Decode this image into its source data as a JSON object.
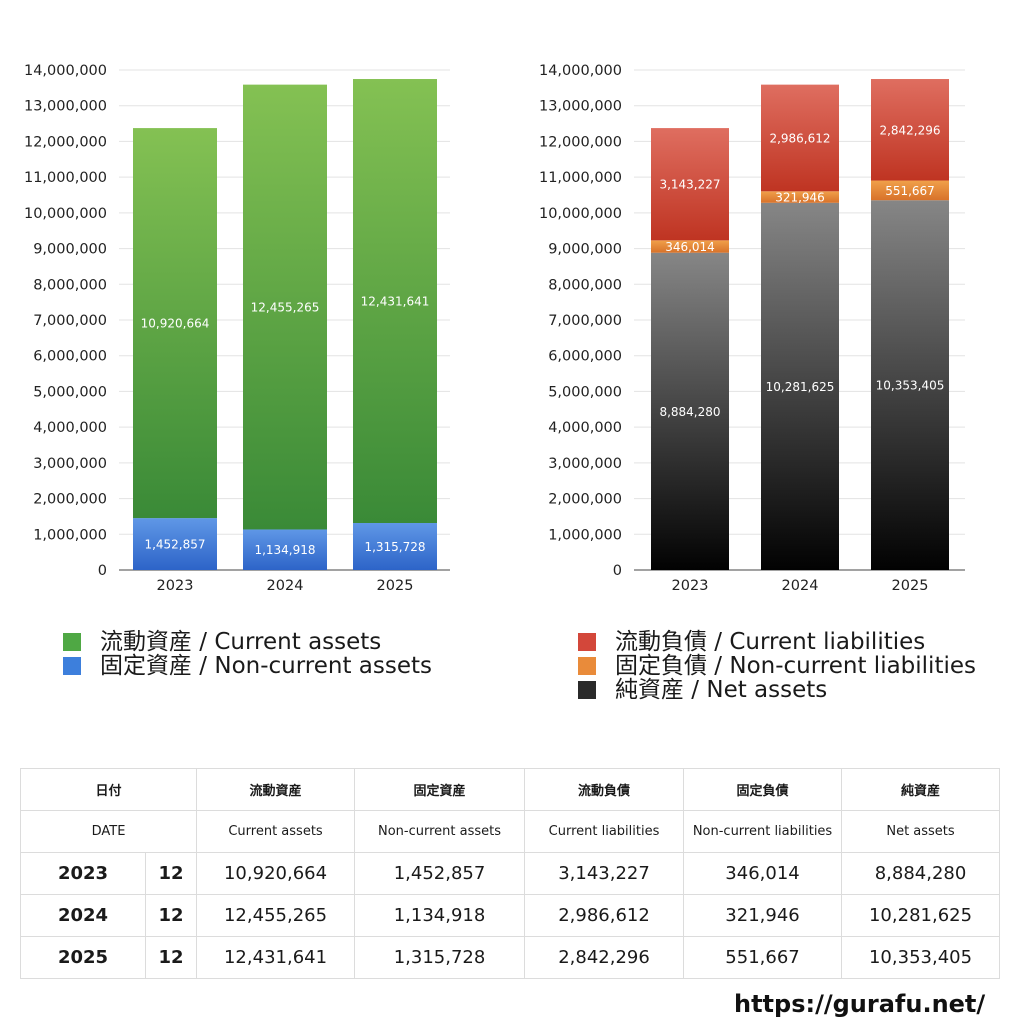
{
  "chart_data": [
    {
      "type": "bar",
      "stacked": true,
      "categories": [
        "2023",
        "2024",
        "2025"
      ],
      "series": [
        {
          "name": "固定資産 / Non-current assets",
          "values": [
            1452857,
            1134918,
            1315728
          ],
          "color_top": "#5f97e6",
          "color_bottom": "#2d64c8"
        },
        {
          "name": "流動資産 / Current assets",
          "values": [
            10920664,
            12455265,
            12431641
          ],
          "color_top": "#84c153",
          "color_bottom": "#3a8a37"
        }
      ],
      "ylim": [
        0,
        14000000
      ],
      "yticks": [
        "0",
        "1,000,000",
        "2,000,000",
        "3,000,000",
        "4,000,000",
        "5,000,000",
        "6,000,000",
        "7,000,000",
        "8,000,000",
        "9,000,000",
        "10,000,000",
        "11,000,000",
        "12,000,000",
        "13,000,000",
        "14,000,000"
      ],
      "data_labels": true,
      "grid": true,
      "legend_position": "bottom"
    },
    {
      "type": "bar",
      "stacked": true,
      "categories": [
        "2023",
        "2024",
        "2025"
      ],
      "series": [
        {
          "name": "純資産 / Net assets",
          "values": [
            8884280,
            10281625,
            10353405
          ],
          "color_top": "#868686",
          "color_bottom": "#020202"
        },
        {
          "name": "固定負債 / Non-current liabilities",
          "values": [
            346014,
            321946,
            551667
          ],
          "color_top": "#f0a04a",
          "color_bottom": "#d8722a"
        },
        {
          "name": "流動負債 / Current liabilities",
          "values": [
            3143227,
            2986612,
            2842296
          ],
          "color_top": "#df6e60",
          "color_bottom": "#bf3422"
        }
      ],
      "ylim": [
        0,
        14000000
      ],
      "yticks": [
        "0",
        "1,000,000",
        "2,000,000",
        "3,000,000",
        "4,000,000",
        "5,000,000",
        "6,000,000",
        "7,000,000",
        "8,000,000",
        "9,000,000",
        "10,000,000",
        "11,000,000",
        "12,000,000",
        "13,000,000",
        "14,000,000"
      ],
      "data_labels": true,
      "grid": true,
      "legend_position": "bottom"
    }
  ],
  "legend_left": [
    {
      "label": "流動資産 / Current assets",
      "color": "#4fa844"
    },
    {
      "label": "固定資産 / Non-current assets",
      "color": "#3d7fdc"
    }
  ],
  "legend_right": [
    {
      "label": "流動負債 / Current liabilities",
      "color": "#d3473a"
    },
    {
      "label": "固定負債 / Non-current liabilities",
      "color": "#e98b3a"
    },
    {
      "label": "純資産 / Net assets",
      "color": "#2a2a2a"
    }
  ],
  "table": {
    "header_jp": {
      "date": "日付",
      "ca": "流動資産",
      "nca": "固定資産",
      "cl": "流動負債",
      "ncl": "固定負債",
      "na": "純資産"
    },
    "header_en": {
      "date": "DATE",
      "ca": "Current assets",
      "nca": "Non-current assets",
      "cl": "Current liabilities",
      "ncl": "Non-current liabilities",
      "na": "Net assets"
    },
    "rows": [
      {
        "year": "2023",
        "month": "12",
        "ca": "10,920,664",
        "nca": "1,452,857",
        "cl": "3,143,227",
        "ncl": "346,014",
        "na": "8,884,280"
      },
      {
        "year": "2024",
        "month": "12",
        "ca": "12,455,265",
        "nca": "1,134,918",
        "cl": "2,986,612",
        "ncl": "321,946",
        "na": "10,281,625"
      },
      {
        "year": "2025",
        "month": "12",
        "ca": "12,431,641",
        "nca": "1,315,728",
        "cl": "2,842,296",
        "ncl": "551,667",
        "na": "10,353,405"
      }
    ]
  },
  "site_url": "https://gurafu.net/"
}
